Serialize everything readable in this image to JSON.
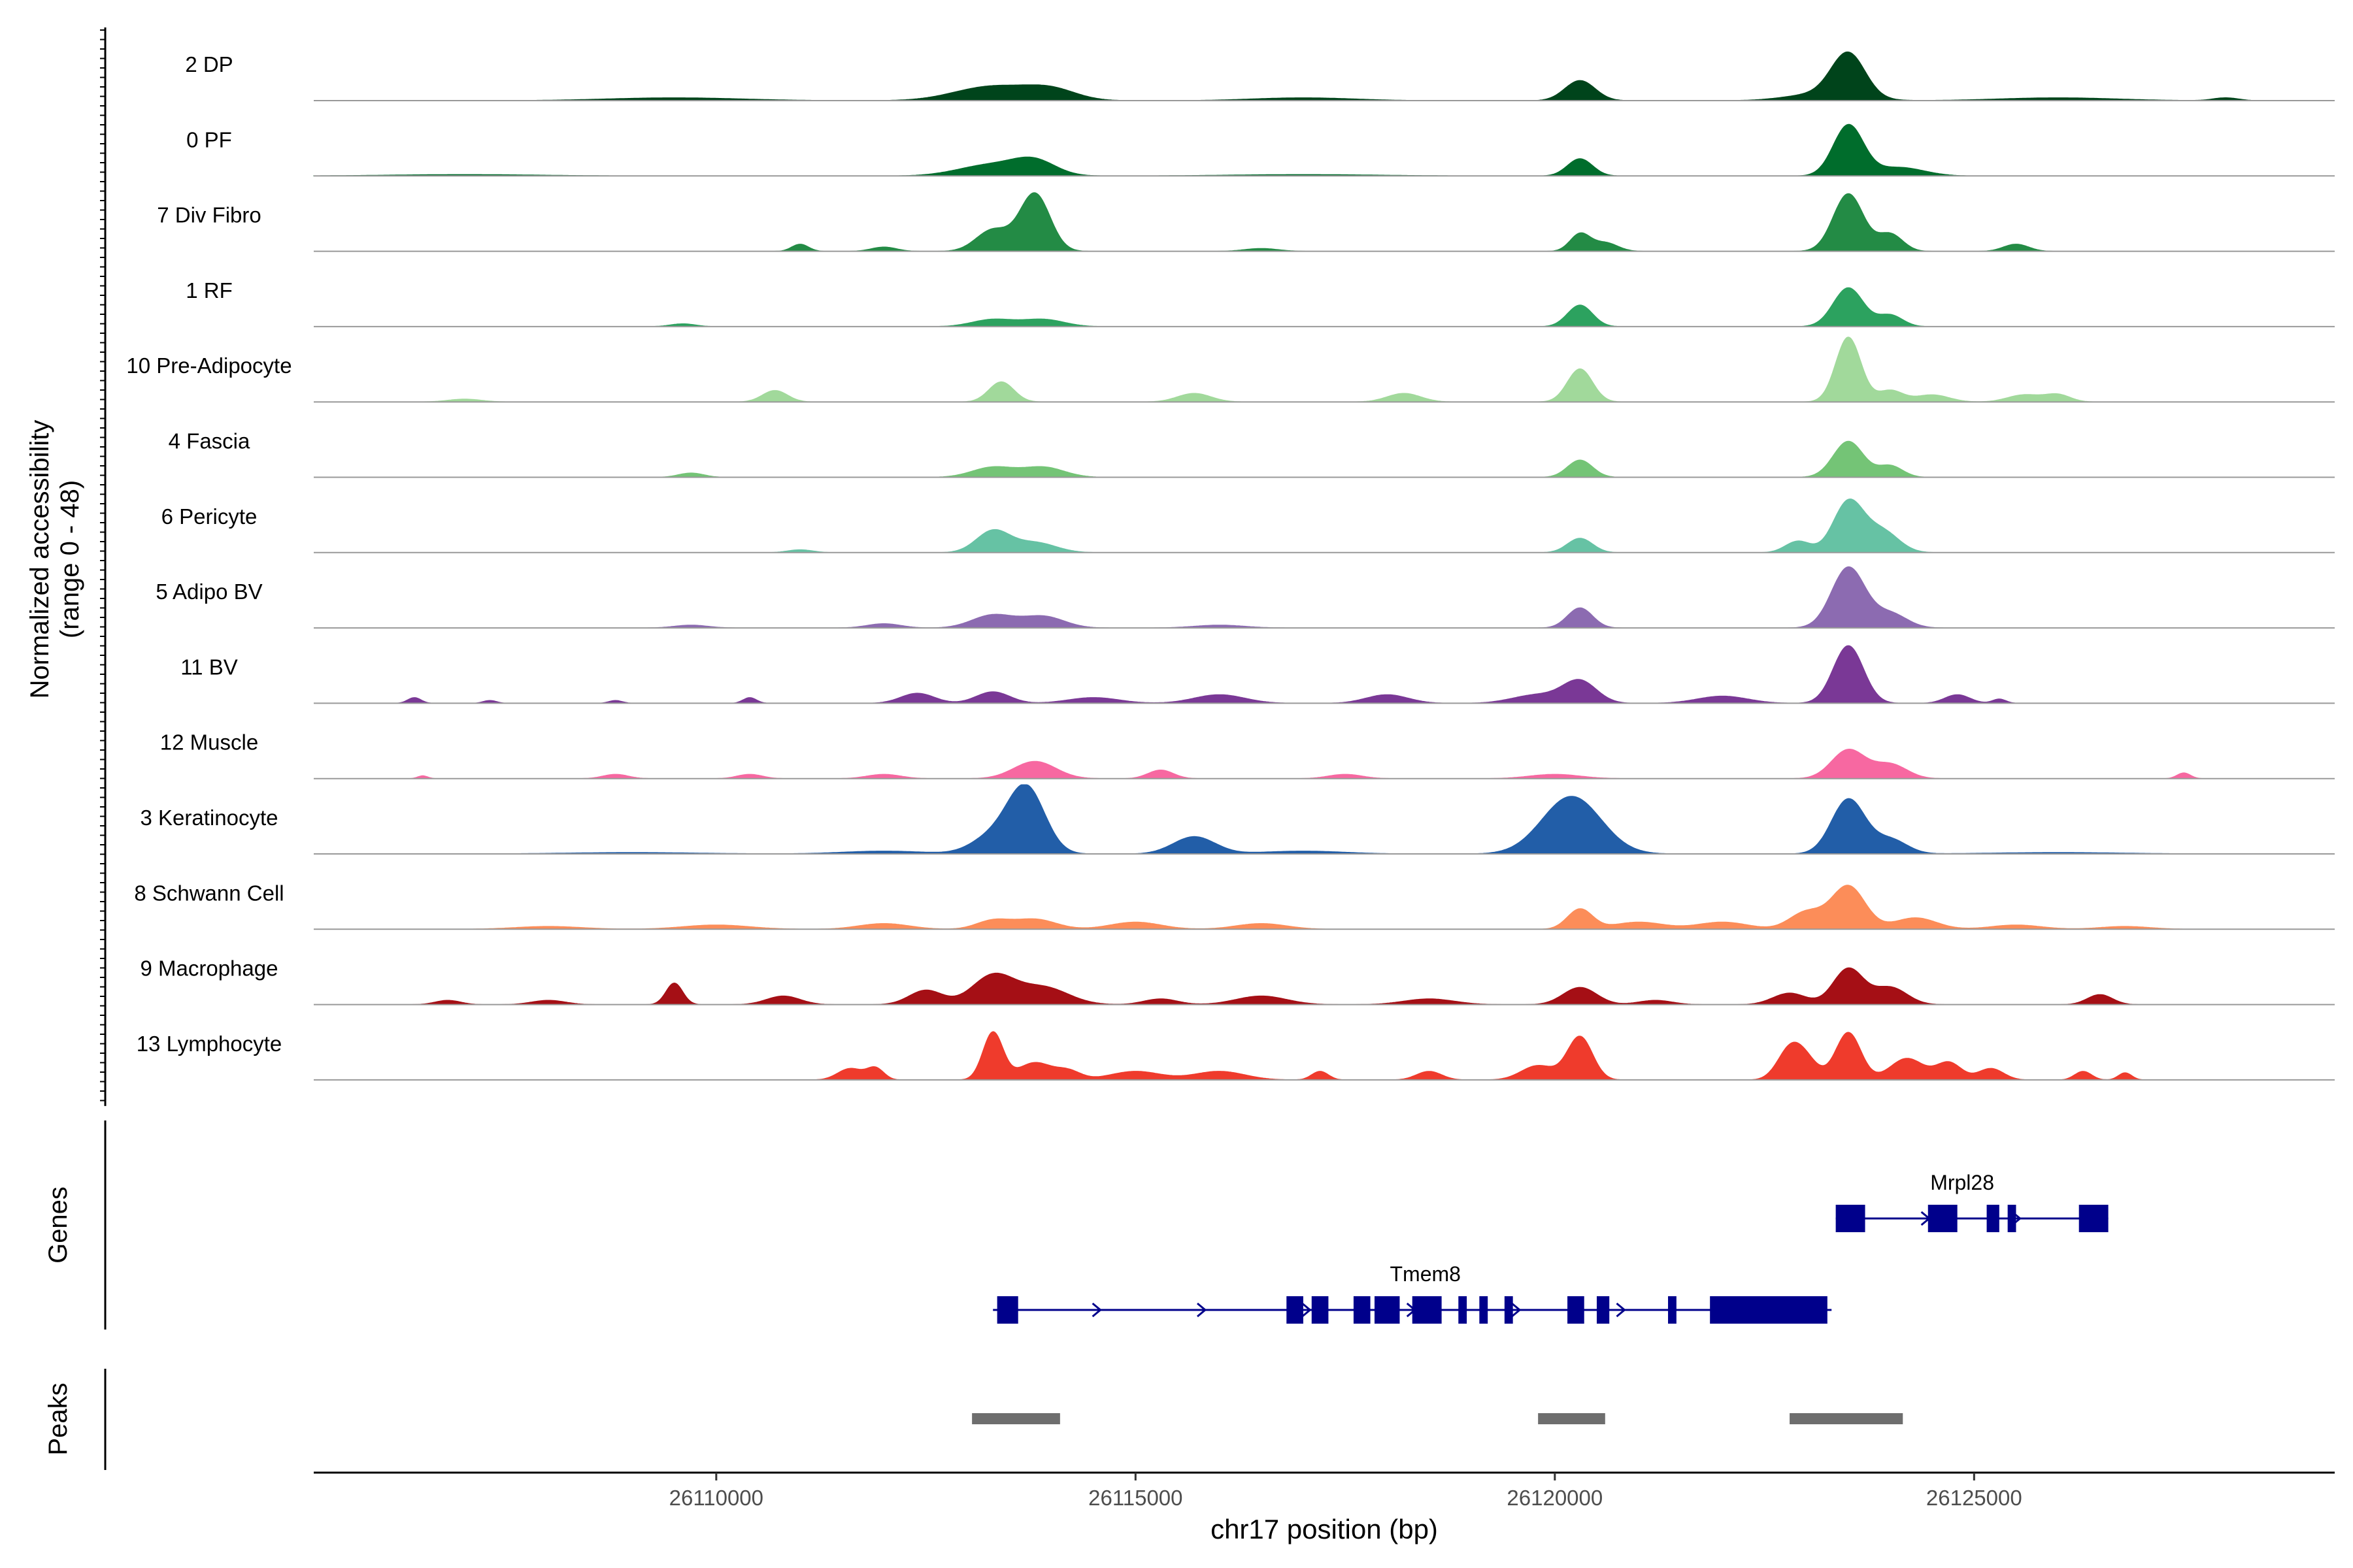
{
  "chart_data": {
    "type": "area",
    "title": "",
    "xlabel": "chr17 position (bp)",
    "xlim": [
      26105200,
      26129300
    ],
    "xticks": [
      26110000,
      26115000,
      26120000,
      26125000
    ],
    "xtick_labels": [
      "26110000",
      "26115000",
      "26120000",
      "26125000"
    ],
    "coverage": {
      "ylabel_line1": "Normalized accessibility",
      "ylabel_line2": "(range 0 - 48)",
      "ylim": [
        0,
        48
      ],
      "tracks": [
        {
          "name": "2 DP",
          "color": "#00441b",
          "peaks": [
            [
              26113300,
              10,
              450
            ],
            [
              26114000,
              7,
              300
            ],
            [
              26120300,
              14,
              180
            ],
            [
              26123500,
              30,
              200
            ],
            [
              26123200,
              5,
              400
            ],
            [
              26109500,
              2,
              800
            ],
            [
              26117000,
              2,
              600
            ],
            [
              26126000,
              2,
              700
            ],
            [
              26128000,
              2,
              150
            ]
          ]
        },
        {
          "name": "0 PF",
          "color": "#006d2c",
          "peaks": [
            [
              26113300,
              8,
              400
            ],
            [
              26113800,
              9,
              250
            ],
            [
              26120300,
              12,
              150
            ],
            [
              26123500,
              35,
              180
            ],
            [
              26124100,
              6,
              300
            ],
            [
              26107000,
              1,
              900
            ],
            [
              26117000,
              1,
              900
            ]
          ]
        },
        {
          "name": "7 Div Fibro",
          "color": "#238b45",
          "peaks": [
            [
              26113800,
              40,
              180
            ],
            [
              26113300,
              15,
              200
            ],
            [
              26120300,
              12,
              120
            ],
            [
              26120600,
              6,
              150
            ],
            [
              26123500,
              40,
              180
            ],
            [
              26124000,
              12,
              150
            ],
            [
              26111000,
              5,
              100
            ],
            [
              26112000,
              3,
              150
            ],
            [
              26125500,
              5,
              150
            ],
            [
              26116500,
              2,
              200
            ]
          ]
        },
        {
          "name": "1 RF",
          "color": "#2ca25f",
          "peaks": [
            [
              26113300,
              5,
              250
            ],
            [
              26113900,
              5,
              250
            ],
            [
              26120300,
              15,
              150
            ],
            [
              26123500,
              27,
              180
            ],
            [
              26124000,
              8,
              150
            ],
            [
              26109600,
              2,
              150
            ]
          ]
        },
        {
          "name": "10 Pre-Adipocyte",
          "color": "#a1d99b",
          "peaks": [
            [
              26123500,
              45,
              150
            ],
            [
              26120300,
              23,
              150
            ],
            [
              26113400,
              14,
              150
            ],
            [
              26110700,
              8,
              150
            ],
            [
              26115700,
              6,
              200
            ],
            [
              26118200,
              6,
              200
            ],
            [
              26124000,
              8,
              150
            ],
            [
              26124500,
              5,
              200
            ],
            [
              26125600,
              5,
              200
            ],
            [
              26126000,
              5,
              150
            ],
            [
              26107000,
              2,
              200
            ]
          ]
        },
        {
          "name": "4 Fascia",
          "color": "#74c476",
          "peaks": [
            [
              26123500,
              25,
              180
            ],
            [
              26124000,
              8,
              150
            ],
            [
              26120300,
              12,
              150
            ],
            [
              26113300,
              7,
              250
            ],
            [
              26113900,
              7,
              250
            ],
            [
              26109700,
              3,
              150
            ]
          ]
        },
        {
          "name": "6 Pericyte",
          "color": "#66c2a4",
          "peaks": [
            [
              26113300,
              15,
              200
            ],
            [
              26113800,
              7,
              250
            ],
            [
              26120300,
              10,
              150
            ],
            [
              26123500,
              35,
              180
            ],
            [
              26123900,
              15,
              200
            ],
            [
              26122900,
              8,
              150
            ],
            [
              26111000,
              2,
              150
            ]
          ]
        },
        {
          "name": "5 Adipo BV",
          "color": "#8c6bb1",
          "peaks": [
            [
              26113300,
              9,
              250
            ],
            [
              26113900,
              8,
              250
            ],
            [
              26120300,
              14,
              150
            ],
            [
              26123500,
              42,
              200
            ],
            [
              26124000,
              10,
              200
            ],
            [
              26112000,
              3,
              200
            ],
            [
              26109700,
              2,
              200
            ],
            [
              26116000,
              2,
              300
            ]
          ]
        },
        {
          "name": "11 BV",
          "color": "#7a3896",
          "peaks": [
            [
              26123500,
              40,
              180
            ],
            [
              26120300,
              15,
              200
            ],
            [
              26119800,
              6,
              300
            ],
            [
              26113300,
              8,
              200
            ],
            [
              26116000,
              6,
              300
            ],
            [
              26118000,
              6,
              250
            ],
            [
              26112400,
              7,
              200
            ],
            [
              26114500,
              4,
              300
            ],
            [
              26106400,
              4,
              80
            ],
            [
              26107300,
              2,
              80
            ],
            [
              26108800,
              2,
              80
            ],
            [
              26110400,
              4,
              80
            ],
            [
              26122000,
              5,
              300
            ],
            [
              26124800,
              6,
              150
            ],
            [
              26125300,
              3,
              80
            ]
          ]
        },
        {
          "name": "12 Muscle",
          "color": "#f768a1",
          "peaks": [
            [
              26113800,
              12,
              250
            ],
            [
              26115300,
              6,
              150
            ],
            [
              26123500,
              20,
              200
            ],
            [
              26124000,
              10,
              200
            ],
            [
              26108800,
              3,
              150
            ],
            [
              26110400,
              3,
              150
            ],
            [
              26112000,
              3,
              200
            ],
            [
              26117500,
              3,
              200
            ],
            [
              26120000,
              3,
              300
            ],
            [
              26127500,
              4,
              80
            ],
            [
              26106500,
              2,
              60
            ]
          ]
        },
        {
          "name": "3 Keratinocyte",
          "color": "#225ea8",
          "peaks": [
            [
              26113700,
              45,
              220
            ],
            [
              26113300,
              12,
              250
            ],
            [
              26120200,
              40,
              350
            ],
            [
              26115700,
              12,
              250
            ],
            [
              26123500,
              38,
              200
            ],
            [
              26124000,
              10,
              200
            ],
            [
              26112000,
              2,
              500
            ],
            [
              26117000,
              2,
              500
            ],
            [
              26109000,
              1,
              800
            ],
            [
              26126000,
              1,
              800
            ]
          ]
        },
        {
          "name": "8 Schwann Cell",
          "color": "#fc8d59",
          "peaks": [
            [
              26123500,
              30,
              200
            ],
            [
              26123000,
              12,
              200
            ],
            [
              26120300,
              14,
              150
            ],
            [
              26113800,
              7,
              250
            ],
            [
              26113300,
              6,
              200
            ],
            [
              26115000,
              5,
              300
            ],
            [
              26116500,
              4,
              300
            ],
            [
              26112000,
              4,
              300
            ],
            [
              26110000,
              3,
              400
            ],
            [
              26121000,
              5,
              300
            ],
            [
              26122000,
              5,
              300
            ],
            [
              26124300,
              8,
              250
            ],
            [
              26125500,
              3,
              300
            ],
            [
              26126800,
              2,
              300
            ],
            [
              26108000,
              2,
              400
            ]
          ]
        },
        {
          "name": "9 Macrophage",
          "color": "#a50f15",
          "peaks": [
            [
              26113300,
              20,
              250
            ],
            [
              26113900,
              12,
              300
            ],
            [
              26112500,
              10,
              200
            ],
            [
              26109500,
              15,
              100
            ],
            [
              26123500,
              25,
              180
            ],
            [
              26124000,
              12,
              200
            ],
            [
              26120300,
              12,
              200
            ],
            [
              26122800,
              8,
              200
            ],
            [
              26110800,
              6,
              200
            ],
            [
              26116500,
              6,
              300
            ],
            [
              26118500,
              4,
              300
            ],
            [
              26126500,
              7,
              150
            ],
            [
              26106800,
              3,
              150
            ],
            [
              26108000,
              3,
              200
            ],
            [
              26115300,
              4,
              200
            ],
            [
              26121200,
              3,
              200
            ]
          ]
        },
        {
          "name": "13 Lymphocyte",
          "color": "#ef3b2c",
          "peaks": [
            [
              26113300,
              33,
              120
            ],
            [
              26113800,
              12,
              200
            ],
            [
              26114200,
              6,
              150
            ],
            [
              26120300,
              30,
              150
            ],
            [
              26119800,
              10,
              200
            ],
            [
              26123500,
              33,
              150
            ],
            [
              26122800,
              20,
              150
            ],
            [
              26123000,
              12,
              150
            ],
            [
              26124200,
              15,
              200
            ],
            [
              26124700,
              12,
              150
            ],
            [
              26125200,
              8,
              150
            ],
            [
              26111600,
              8,
              150
            ],
            [
              26111900,
              8,
              100
            ],
            [
              26115000,
              6,
              300
            ],
            [
              26116000,
              6,
              300
            ],
            [
              26117200,
              6,
              100
            ],
            [
              26118500,
              6,
              150
            ],
            [
              26126300,
              6,
              100
            ],
            [
              26126800,
              5,
              80
            ]
          ]
        }
      ]
    },
    "genes": {
      "ylabel": "Genes",
      "items": [
        {
          "name": "Mrpl28",
          "start": 26123350,
          "end": 26126600,
          "strand": "+",
          "exons": [
            [
              26123350,
              26123700
            ],
            [
              26124450,
              26124800
            ],
            [
              26125150,
              26125300
            ],
            [
              26125400,
              26125500
            ],
            [
              26126250,
              26126600
            ]
          ]
        },
        {
          "name": "Tmem8",
          "start": 26113300,
          "end": 26123300,
          "strand": "+",
          "exons": [
            [
              26113350,
              26113600
            ],
            [
              26116800,
              26117000
            ],
            [
              26117100,
              26117300
            ],
            [
              26117600,
              26117800
            ],
            [
              26117850,
              26118150
            ],
            [
              26118300,
              26118650
            ],
            [
              26118850,
              26118950
            ],
            [
              26119100,
              26119200
            ],
            [
              26119400,
              26119500
            ],
            [
              26120150,
              26120350
            ],
            [
              26120500,
              26120650
            ],
            [
              26121350,
              26121450
            ],
            [
              26121850,
              26123250
            ]
          ]
        }
      ]
    },
    "peaks": {
      "ylabel": "Peaks",
      "regions": [
        [
          26113050,
          26114100
        ],
        [
          26119800,
          26120600
        ],
        [
          26122800,
          26124150
        ]
      ]
    }
  }
}
